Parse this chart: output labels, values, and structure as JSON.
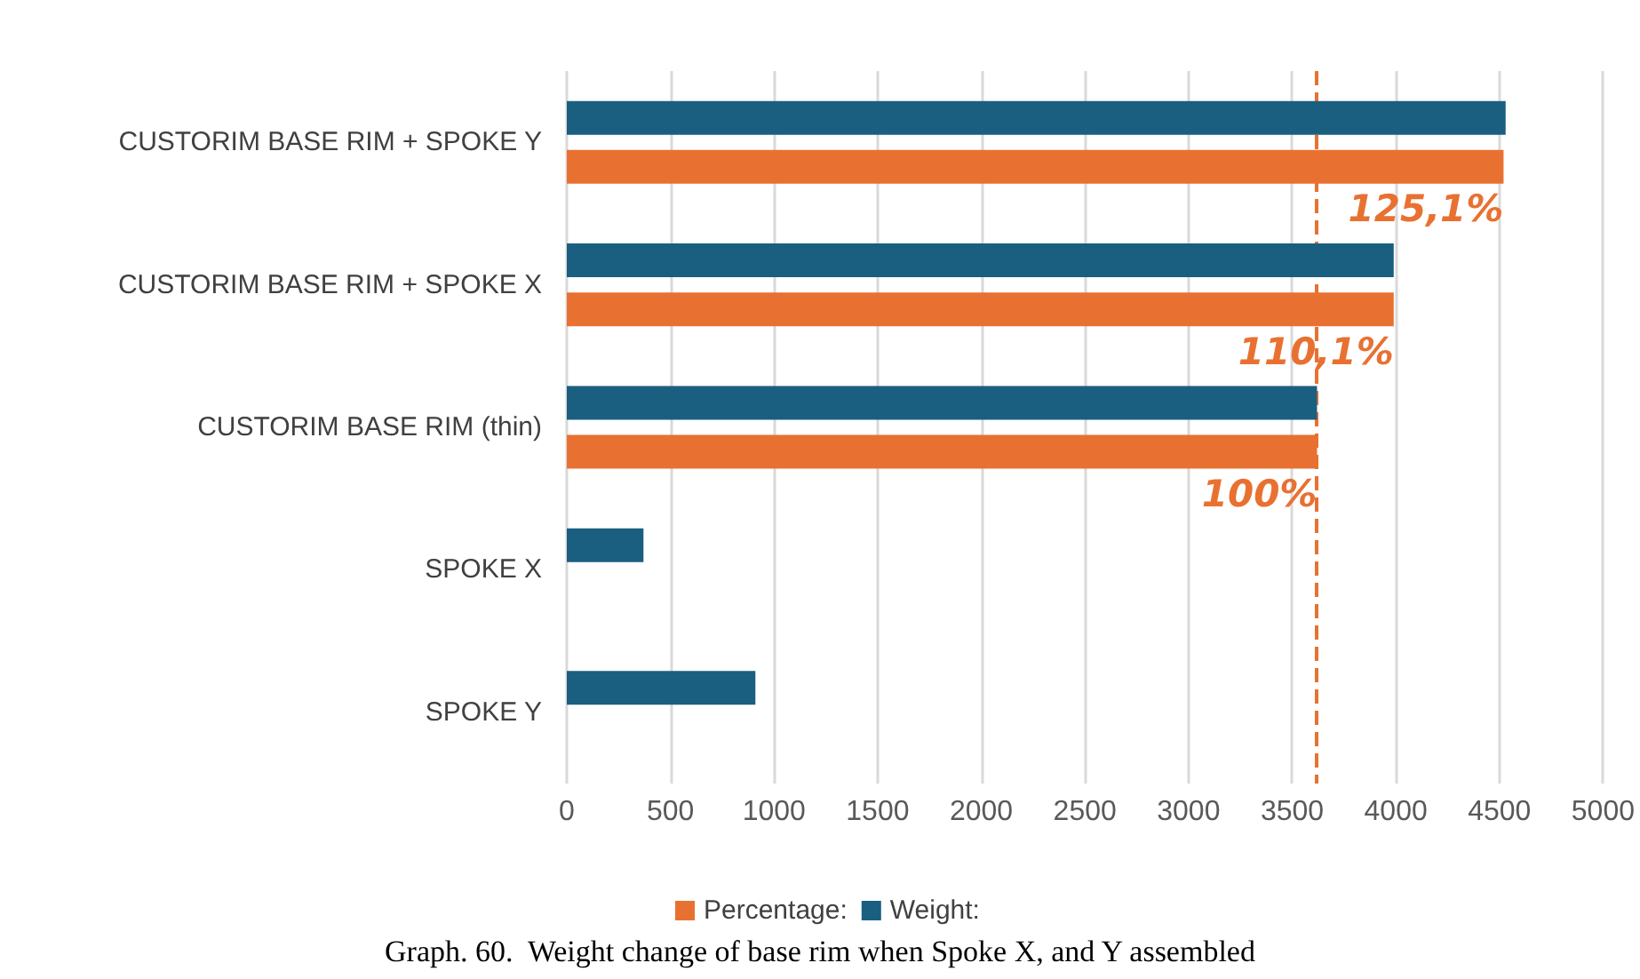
{
  "chart_data": {
    "type": "bar",
    "orientation": "horizontal",
    "title": "Graph. 60.  Weight change of base rim when Spoke X, and Y assembled",
    "categories": [
      "CUSTORIM BASE RIM + SPOKE Y",
      "CUSTORIM BASE RIM + SPOKE X",
      "CUSTORIM BASE RIM (thin)",
      "SPOKE X",
      "SPOKE Y"
    ],
    "series": [
      {
        "name": "Percentage:",
        "color": "#e87132",
        "values": [
          4520,
          3990,
          3620,
          null,
          null
        ]
      },
      {
        "name": "Weight:",
        "color": "#1a5f80",
        "values": [
          4530,
          3990,
          3620,
          370,
          910
        ]
      }
    ],
    "xlim": [
      0,
      5000
    ],
    "xticks": [
      0,
      500,
      1000,
      1500,
      2000,
      2500,
      3000,
      3500,
      4000,
      4500,
      5000
    ],
    "ref_lines": [
      {
        "axis": "x",
        "value": 3620,
        "color": "#e87132",
        "line_style": "dashed"
      }
    ],
    "annotations": [
      {
        "text": "125,1%",
        "x": 4520,
        "y": "CUSTORIM BASE RIM + SPOKE Y"
      },
      {
        "text": "110,1%",
        "x": 3990,
        "y": "CUSTORIM BASE RIM + SPOKE X"
      },
      {
        "text": "100%",
        "x": 3620,
        "y": "CUSTORIM BASE RIM (thin)"
      }
    ],
    "grid": "x",
    "legend": "bottom"
  }
}
